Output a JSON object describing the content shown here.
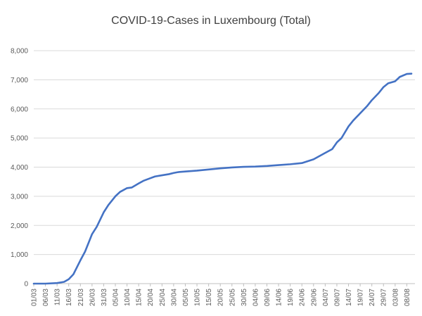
{
  "chart_data": {
    "type": "line",
    "title": "COVID-19-Cases in Luxembourg (Total)",
    "xlabel": "",
    "ylabel": "",
    "ylim": [
      0,
      8000
    ],
    "yticks": [
      0,
      1000,
      2000,
      3000,
      4000,
      5000,
      6000,
      7000,
      8000
    ],
    "ytick_labels": [
      "0",
      "1,000",
      "2,000",
      "3,000",
      "4,000",
      "5,000",
      "6,000",
      "7,000",
      "8,000"
    ],
    "grid": true,
    "legend": "none",
    "color": "#4472c4",
    "x_tick_labels": [
      "01/03",
      "06/03",
      "11/03",
      "16/03",
      "21/03",
      "26/03",
      "31/03",
      "05/04",
      "10/04",
      "15/04",
      "20/04",
      "25/04",
      "30/04",
      "05/05",
      "10/05",
      "15/05",
      "20/05",
      "25/05",
      "30/05",
      "04/06",
      "09/06",
      "14/06",
      "19/06",
      "24/06",
      "29/06",
      "04/07",
      "09/07",
      "14/07",
      "19/07",
      "24/07",
      "29/07",
      "03/08",
      "08/08"
    ],
    "x_tick_step_days": 5,
    "series": [
      {
        "x": [
          "01/03",
          "06/03",
          "11/03",
          "14/03",
          "16/03",
          "18/03",
          "21/03",
          "23/03",
          "26/03",
          "28/03",
          "31/03",
          "02/04",
          "05/04",
          "07/04",
          "10/04",
          "12/04",
          "15/04",
          "17/04",
          "20/04",
          "22/04",
          "25/04",
          "28/04",
          "30/04",
          "02/05",
          "05/05",
          "10/05",
          "15/05",
          "20/05",
          "25/05",
          "30/05",
          "04/06",
          "09/06",
          "14/06",
          "19/06",
          "24/06",
          "29/06",
          "04/07",
          "07/07",
          "09/07",
          "11/07",
          "14/07",
          "16/07",
          "19/07",
          "22/07",
          "24/07",
          "27/07",
          "29/07",
          "31/07",
          "03/08",
          "05/08",
          "08/08",
          "10/08"
        ],
        "values": [
          0,
          0,
          20,
          60,
          150,
          320,
          800,
          1100,
          1700,
          1950,
          2450,
          2700,
          3000,
          3150,
          3280,
          3300,
          3440,
          3530,
          3620,
          3680,
          3720,
          3760,
          3800,
          3830,
          3850,
          3880,
          3920,
          3960,
          3990,
          4010,
          4020,
          4040,
          4070,
          4100,
          4140,
          4270,
          4490,
          4620,
          4850,
          5000,
          5400,
          5600,
          5850,
          6100,
          6300,
          6550,
          6750,
          6880,
          6950,
          7100,
          7200,
          7210
        ]
      }
    ]
  }
}
